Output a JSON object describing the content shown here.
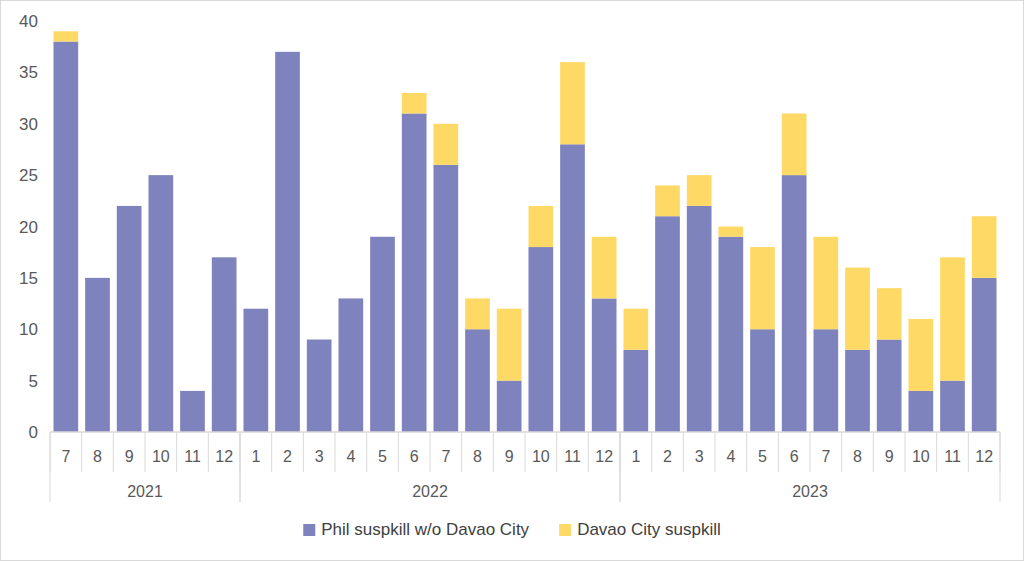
{
  "chart_data": {
    "type": "bar",
    "stacked": true,
    "categories": [
      "7",
      "8",
      "9",
      "10",
      "11",
      "12",
      "1",
      "2",
      "3",
      "4",
      "5",
      "6",
      "7",
      "8",
      "9",
      "10",
      "11",
      "12",
      "1",
      "2",
      "3",
      "4",
      "5",
      "6",
      "7",
      "8",
      "9",
      "10",
      "11",
      "12"
    ],
    "groups": [
      {
        "label": "2021",
        "size": 6
      },
      {
        "label": "2022",
        "size": 12
      },
      {
        "label": "2023",
        "size": 12
      }
    ],
    "series": [
      {
        "name": "Phil suspkill w/o Davao City",
        "color": "#7e83bd",
        "values": [
          38,
          15,
          22,
          25,
          4,
          17,
          12,
          37,
          9,
          13,
          19,
          31,
          26,
          10,
          5,
          18,
          28,
          13,
          8,
          21,
          22,
          19,
          10,
          25,
          10,
          8,
          9,
          4,
          5,
          15
        ]
      },
      {
        "name": "Davao City suspkill",
        "color": "#ffd966",
        "values": [
          1,
          0,
          0,
          0,
          0,
          0,
          0,
          0,
          0,
          0,
          0,
          2,
          4,
          3,
          7,
          4,
          8,
          6,
          4,
          3,
          3,
          1,
          8,
          6,
          9,
          8,
          5,
          7,
          12,
          6
        ]
      }
    ],
    "ylim": [
      0,
      40
    ],
    "yticks": [
      0,
      5,
      10,
      15,
      20,
      25,
      30,
      35,
      40
    ],
    "grid": false,
    "legend": "bottom"
  }
}
